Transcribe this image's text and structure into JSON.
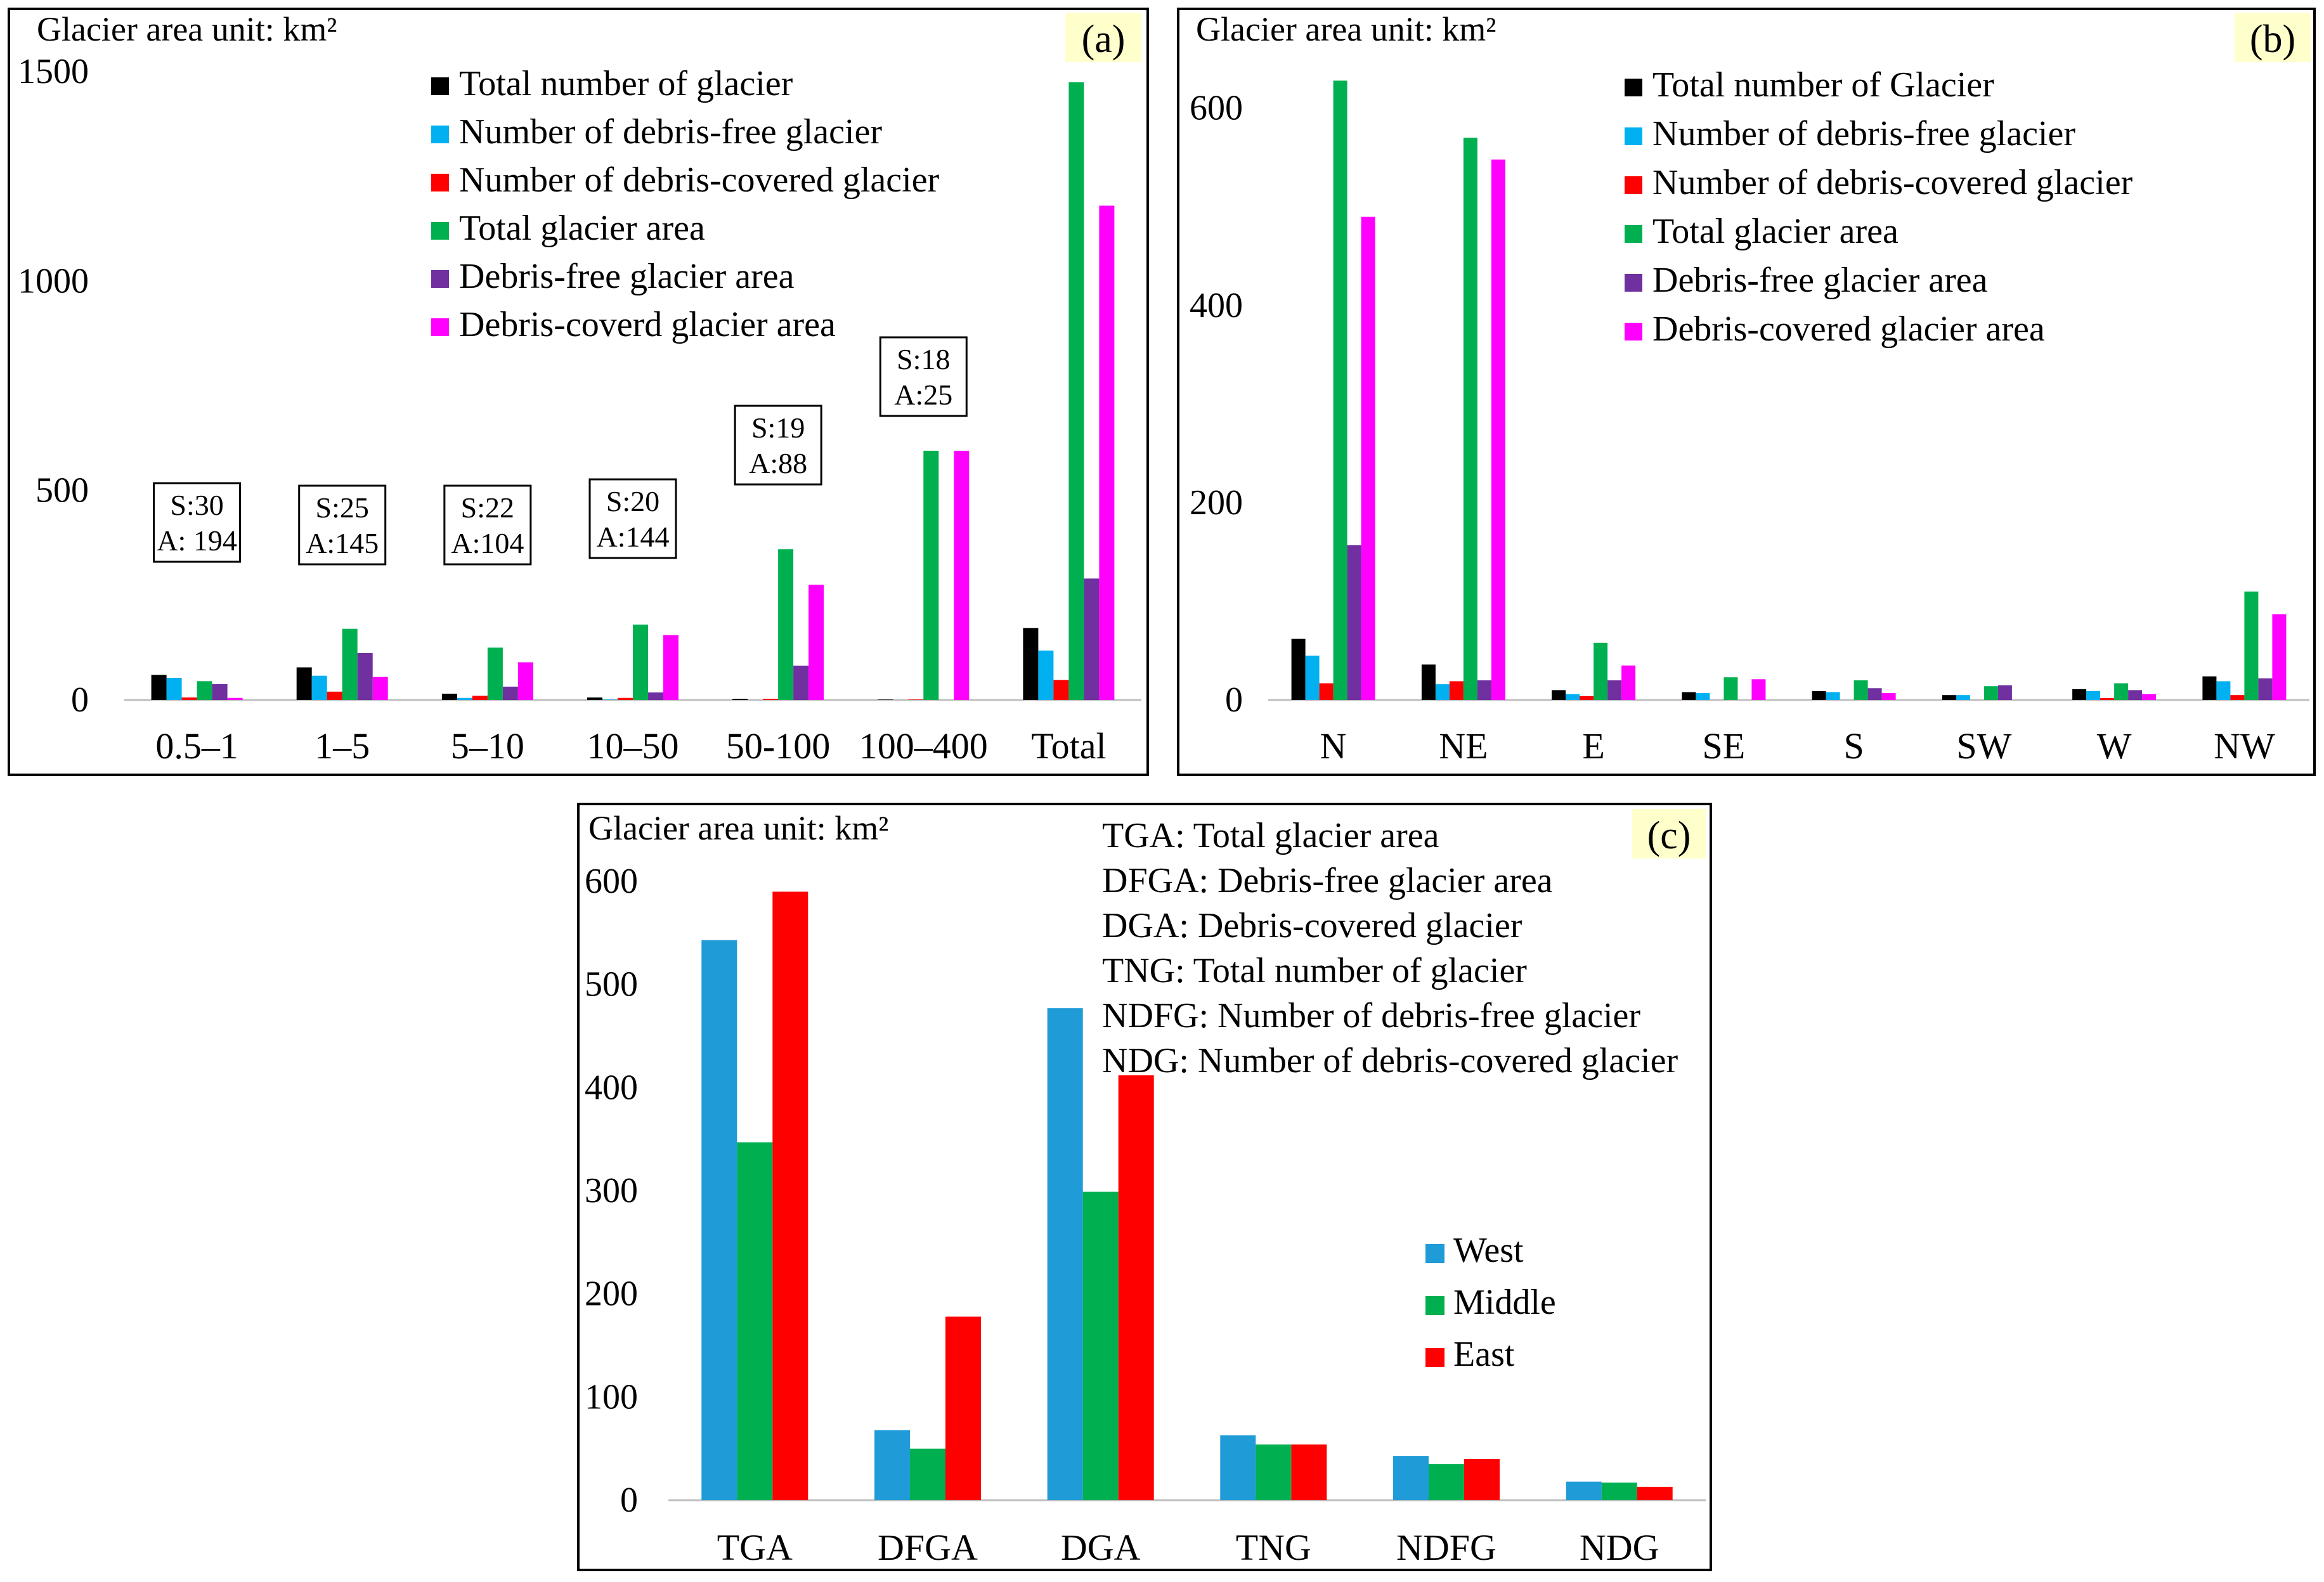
{
  "colors": {
    "black": "#000000",
    "cyan": "#00b0f0",
    "red": "#ff0000",
    "green": "#00b050",
    "purple": "#7030a0",
    "magenta": "#ff00ff",
    "blue": "#1f9bd7",
    "tag_bg": "#ffffcc"
  },
  "chart_data": [
    {
      "id": "a",
      "type": "bar",
      "tag": "(a)",
      "unit_label": "Glacier area unit: km²",
      "ylim": [
        0,
        1500
      ],
      "yticks": [
        "0",
        "500",
        "1000",
        "1500"
      ],
      "categories": [
        "0.5–1",
        "1–5",
        "5–10",
        "10–50",
        "50-100",
        "100–400",
        "Total"
      ],
      "series": [
        {
          "name": "Total number of glacier",
          "color": "#000000",
          "values": [
            60,
            78,
            15,
            6,
            3,
            1,
            172
          ]
        },
        {
          "name": "Number of debris-free glacier",
          "color": "#00b0f0",
          "values": [
            53,
            58,
            5,
            1,
            0,
            0,
            118
          ]
        },
        {
          "name": "Number of debris-covered glacier",
          "color": "#ff0000",
          "values": [
            6,
            20,
            10,
            5,
            3,
            1,
            48
          ]
        },
        {
          "name": "Total glacier area",
          "color": "#00b050",
          "values": [
            45,
            170,
            125,
            180,
            360,
            595,
            1475
          ]
        },
        {
          "name": "Debris-free glacier area",
          "color": "#7030a0",
          "values": [
            38,
            112,
            32,
            18,
            82,
            0,
            290
          ]
        },
        {
          "name": "Debris-coverd glacier area",
          "color": "#ff00ff",
          "values": [
            5,
            55,
            90,
            155,
            275,
            595,
            1180
          ]
        }
      ],
      "annotations": [
        {
          "line1": "S:30",
          "line2": "A: 194"
        },
        {
          "line1": "S:25",
          "line2": "A:145"
        },
        {
          "line1": "S:22",
          "line2": "A:104"
        },
        {
          "line1": "S:20",
          "line2": "A:144"
        },
        {
          "line1": "S:19",
          "line2": "A:88"
        },
        {
          "line1": "S:18",
          "line2": "A:25"
        }
      ]
    },
    {
      "id": "b",
      "type": "bar",
      "tag": "(b)",
      "unit_label": "Glacier area unit: km²",
      "ylim": [
        0,
        630
      ],
      "yticks": [
        "0",
        "200",
        "400",
        "600"
      ],
      "categories": [
        "N",
        "NE",
        "E",
        "SE",
        "S",
        "SW",
        "W",
        "NW"
      ],
      "series": [
        {
          "name": "Total number of Glacier",
          "color": "#000000",
          "values": [
            62,
            36,
            10,
            8,
            9,
            5,
            11,
            24
          ]
        },
        {
          "name": "Number of debris-free glacier",
          "color": "#00b0f0",
          "values": [
            45,
            16,
            6,
            7,
            8,
            5,
            9,
            19
          ]
        },
        {
          "name": "Number of debris-covered glacier",
          "color": "#ff0000",
          "values": [
            17,
            19,
            4,
            0,
            0,
            0,
            2,
            5
          ]
        },
        {
          "name": "Total glacier area",
          "color": "#00b050",
          "values": [
            628,
            570,
            58,
            23,
            20,
            14,
            17,
            110
          ]
        },
        {
          "name": "Debris-free glacier area",
          "color": "#7030a0",
          "values": [
            157,
            20,
            20,
            0,
            12,
            15,
            10,
            22
          ]
        },
        {
          "name": "Debris-covered glacier area",
          "color": "#ff00ff",
          "values": [
            490,
            548,
            35,
            21,
            7,
            0,
            6,
            87
          ]
        }
      ]
    },
    {
      "id": "c",
      "type": "bar",
      "tag": "(c)",
      "unit_label": "Glacier area unit: km²",
      "ylim": [
        0,
        600
      ],
      "yticks": [
        "0",
        "100",
        "200",
        "300",
        "400",
        "500",
        "600"
      ],
      "categories": [
        "TGA",
        "DFGA",
        "DGA",
        "TNG",
        "NDFG",
        "NDG"
      ],
      "abbreviations": [
        "TGA: Total glacier area",
        "DFGA: Debris-free glacier area",
        "DGA: Debris-covered glacier",
        "TNG: Total number of glacier",
        "NDFG: Number of debris-free glacier",
        "NDG: Number of debris-covered glacier"
      ],
      "series": [
        {
          "name": "West",
          "color": "#1f9bd7",
          "values": [
            543,
            68,
            477,
            63,
            43,
            18
          ]
        },
        {
          "name": "Middle",
          "color": "#00b050",
          "values": [
            347,
            50,
            299,
            54,
            35,
            17
          ]
        },
        {
          "name": "East",
          "color": "#ff0000",
          "values": [
            590,
            178,
            412,
            54,
            40,
            13
          ]
        }
      ]
    }
  ]
}
